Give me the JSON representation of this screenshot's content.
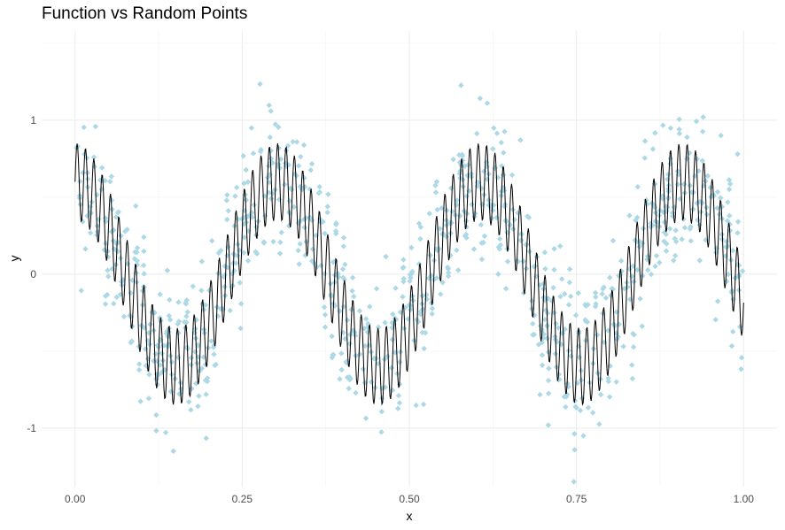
{
  "chart_data": {
    "type": "scatter",
    "title": "Function vs Random Points",
    "xlabel": "x",
    "ylabel": "y",
    "xlim": [
      -0.05,
      1.05
    ],
    "ylim": [
      -1.38,
      1.58
    ],
    "x_ticks": [
      0.0,
      0.25,
      0.5,
      0.75,
      1.0
    ],
    "x_tick_labels": [
      "0.00",
      "0.25",
      "0.50",
      "0.75",
      "1.00"
    ],
    "y_ticks": [
      -1,
      0,
      1
    ],
    "y_tick_labels": [
      "-1",
      "0",
      "1"
    ],
    "grid": true,
    "theme": "minimal",
    "series": [
      {
        "type": "line",
        "color": "#000000",
        "function": "0.6*cos(2*pi*3.3*x) + 0.25*sin(2*pi*80*x)",
        "x_range": [
          0,
          1
        ],
        "points": 1000
      },
      {
        "type": "points",
        "color": "#ADD8E6",
        "shape": "diamond",
        "count": 1000,
        "description": "function value plus random noise"
      }
    ]
  }
}
